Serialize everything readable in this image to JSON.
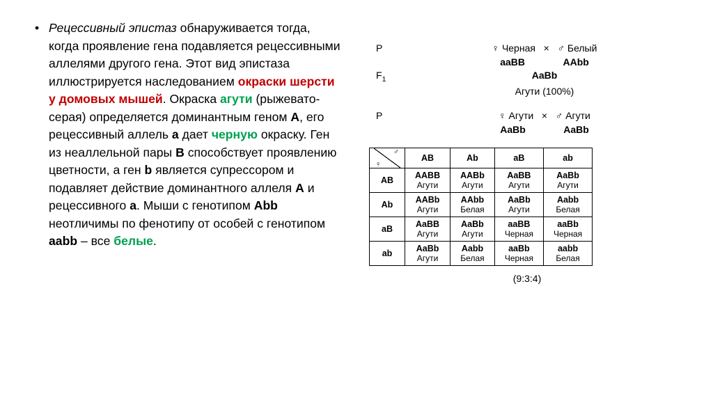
{
  "text": {
    "p1a": "Рецессивный эпистаз",
    "p1b": " обнаруживается тогда, когда проявление гена подавляется рецессивными аллелями другого гена. Этот вид эпистаза иллюстрируется наследованием ",
    "p1c": "окраски шерсти у домовых мышей",
    "p1d": ". Окраска ",
    "p1e": "агути",
    "p1f": " (рыжевато-серая) определяется доминантным геном ",
    "p1g": "А",
    "p1h": ", его рецессивный аллель ",
    "p1i": "а",
    "p1j": " дает ",
    "p1k": "черную",
    "p1l": " окраску. Ген из неаллельной пары ",
    "p1m": "В",
    "p1n": " способствует проявлению цветности, а ген ",
    "p1o": "b",
    "p1p": " является супрессором и подавляет действие доминантного аллеля ",
    "p1q": "А",
    "p1r": " и рецессивного ",
    "p1s": "а",
    "p1t": ". Мыши с генотипом ",
    "p1u": "Abb",
    "p1v": " неотличимы по фенотипу от особей с генотипом ",
    "p1w": "aabb",
    "p1x": " – все ",
    "p1y": "белые",
    "p1z": "."
  },
  "cross1": {
    "P": "P",
    "female_sym": "♀",
    "female_lbl": "Черная",
    "female_geno": "aaBB",
    "x": "×",
    "male_sym": "♂",
    "male_lbl": "Белый",
    "male_geno": "AAbb",
    "F1": "F",
    "F1sub": "1",
    "F1_geno": "AaBb",
    "F1_pheno": "Агути (100%)"
  },
  "cross2": {
    "P": "P",
    "female_sym": "♀",
    "lbl": "Агути",
    "female_geno": "AaBb",
    "x": "×",
    "male_sym": "♂",
    "male_geno": "AaBb"
  },
  "punnett": {
    "corner_m": "♂",
    "corner_f": "♀",
    "col_headers": [
      "AB",
      "Ab",
      "aB",
      "ab"
    ],
    "row_headers": [
      "AB",
      "Ab",
      "aB",
      "ab"
    ],
    "cells": [
      [
        {
          "g": "AABB",
          "p": "Агути"
        },
        {
          "g": "AABb",
          "p": "Агути"
        },
        {
          "g": "AaBB",
          "p": "Агути"
        },
        {
          "g": "AaBb",
          "p": "Агути"
        }
      ],
      [
        {
          "g": "AABb",
          "p": "Агути"
        },
        {
          "g": "AAbb",
          "p": "Белая"
        },
        {
          "g": "AaBb",
          "p": "Агути"
        },
        {
          "g": "Aabb",
          "p": "Белая"
        }
      ],
      [
        {
          "g": "AaBB",
          "p": "Агути"
        },
        {
          "g": "AaBb",
          "p": "Агути"
        },
        {
          "g": "aaBB",
          "p": "Черная"
        },
        {
          "g": "aaBb",
          "p": "Черная"
        }
      ],
      [
        {
          "g": "AaBb",
          "p": "Агути"
        },
        {
          "g": "Aabb",
          "p": "Белая"
        },
        {
          "g": "aaBb",
          "p": "Черная"
        },
        {
          "g": "aabb",
          "p": "Белая"
        }
      ]
    ]
  },
  "ratio": "(9:3:4)"
}
